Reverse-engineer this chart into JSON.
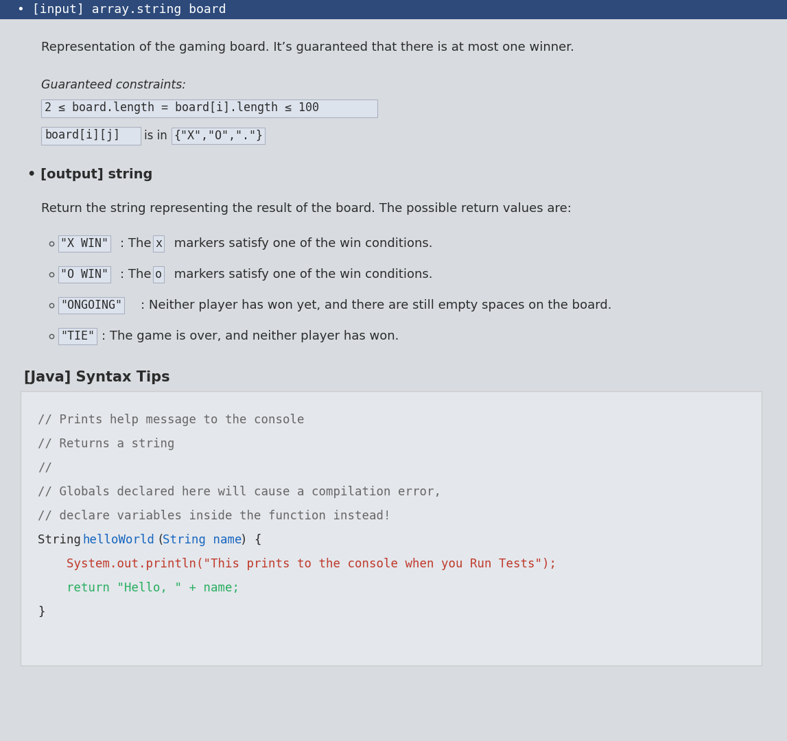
{
  "fig_w": 11.47,
  "fig_h": 10.8,
  "dpi": 100,
  "bg_color": "#d8dce0",
  "header_bg": "#2d4a7a",
  "body_bg": "#d8dce0",
  "text_color": "#2c2c2c",
  "code_border": "#aab0c0",
  "inline_code_bg": "#dde3ed",
  "code_block_bg": "#e4e7eb",
  "gray_text": "#666666",
  "blue_text": "#1565c0",
  "red_text": "#c0392b",
  "green_text": "#27ae60",
  "dark_text": "#2c2c2c",
  "header_text": "• [input] array.string board",
  "para1": "Representation of the gaming board. It’s guaranteed that there is at most one winner.",
  "guaranteed_label": "Guaranteed constraints:",
  "java_section": "[Java] Syntax Tips"
}
